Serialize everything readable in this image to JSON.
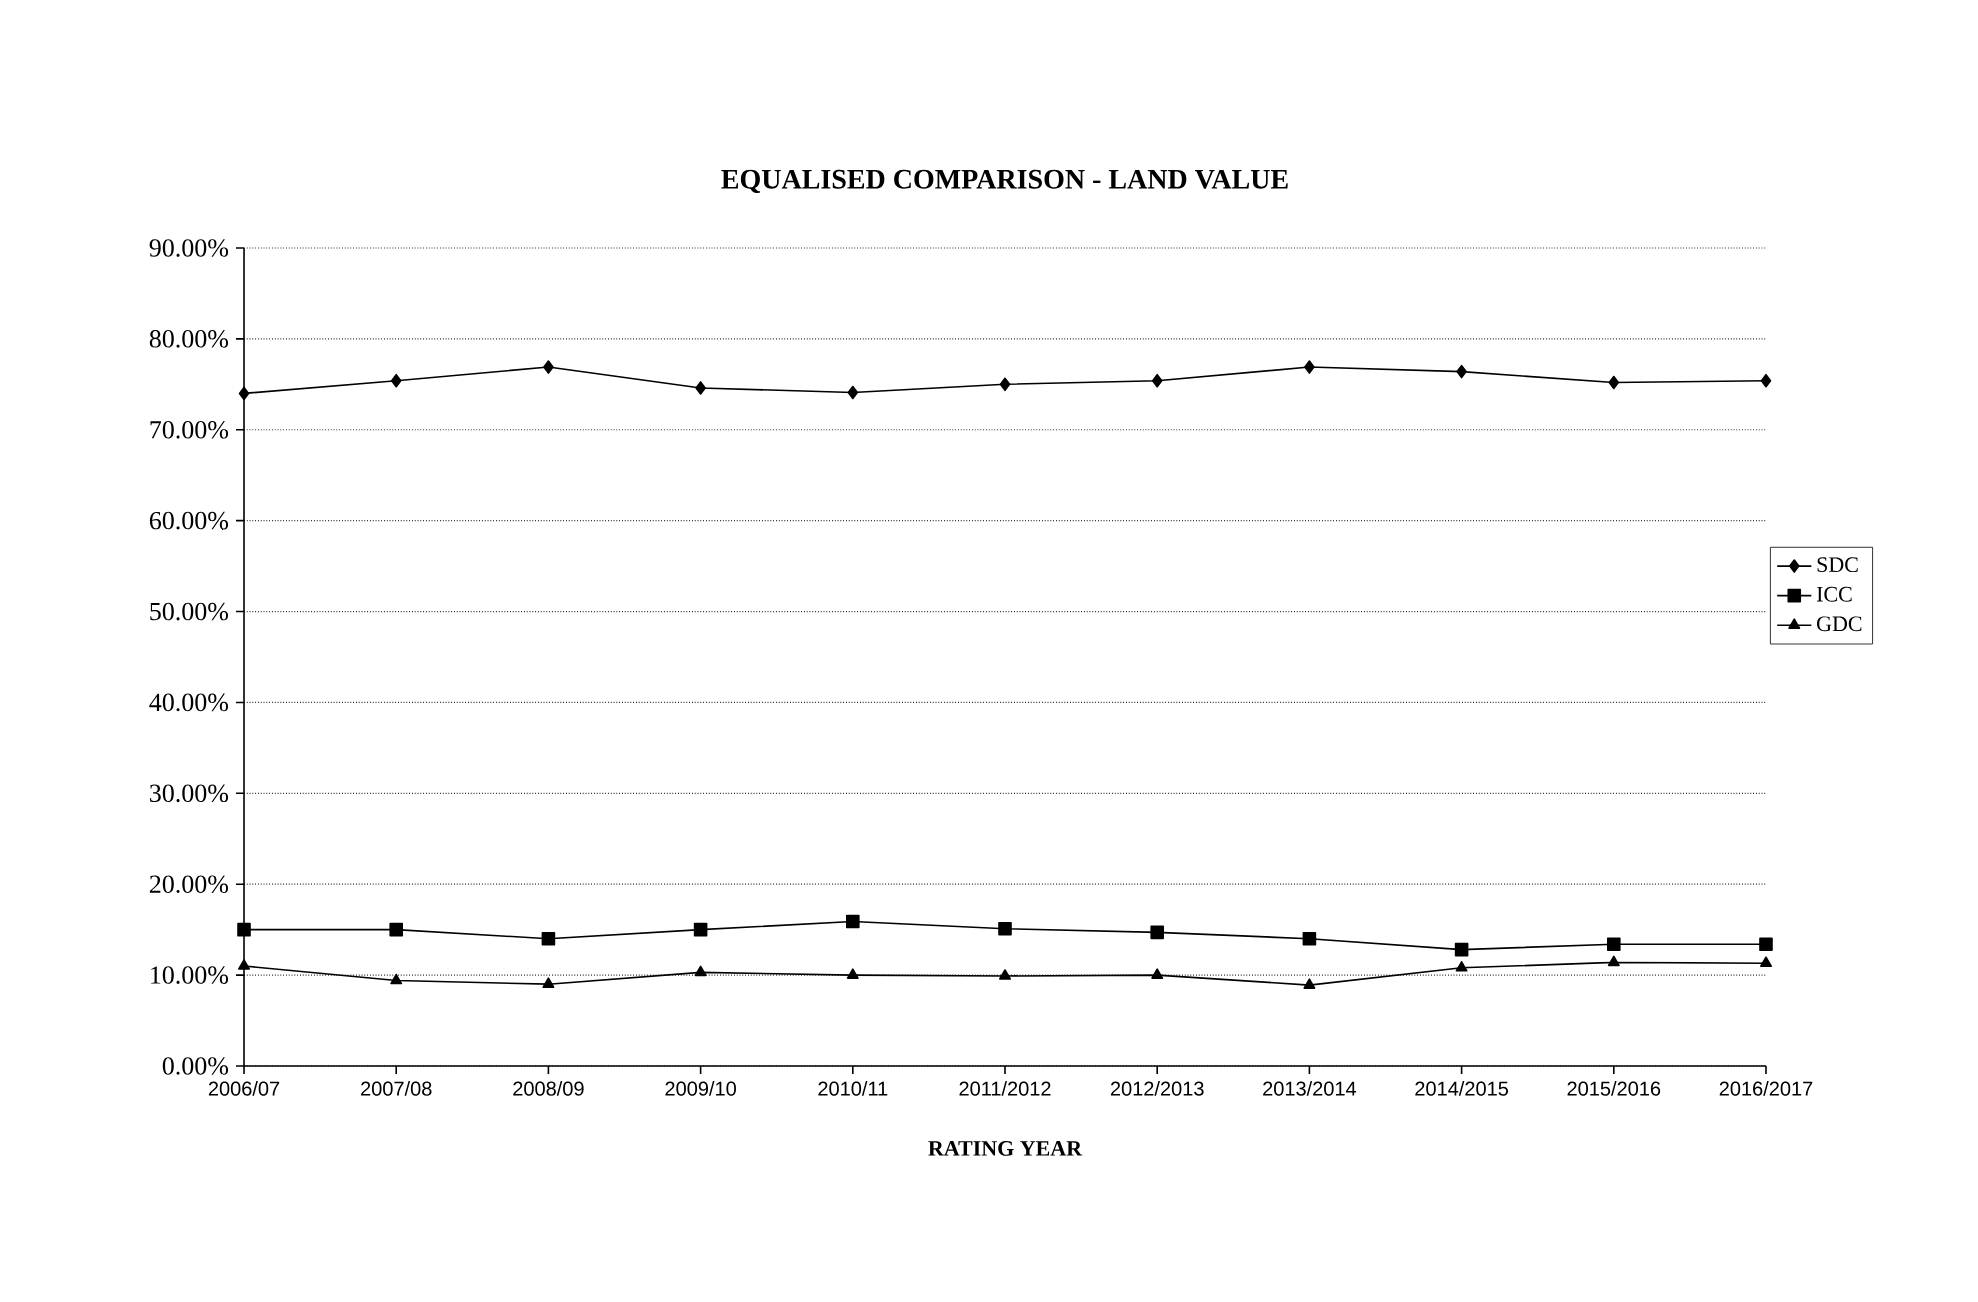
{
  "chart_data": {
    "type": "line",
    "title": "EQUALISED COMPARISON  -  LAND VALUE",
    "xlabel": "RATING YEAR",
    "categories": [
      "2006/07",
      "2007/08",
      "2008/09",
      "2009/10",
      "2010/11",
      "2011/2012",
      "2012/2013",
      "2013/2014",
      "2014/2015",
      "2015/2016",
      "2016/2017"
    ],
    "series": [
      {
        "name": "SDC",
        "color": "#000000",
        "marker": "diamond",
        "values": [
          74.0,
          75.4,
          76.9,
          74.6,
          74.1,
          75.0,
          75.4,
          76.9,
          76.4,
          75.2,
          75.4
        ]
      },
      {
        "name": "ICC",
        "color": "#000000",
        "marker": "square",
        "values": [
          15.0,
          15.0,
          14.0,
          15.0,
          15.9,
          15.1,
          14.7,
          14.0,
          12.8,
          13.4,
          13.4
        ]
      },
      {
        "name": "GDC",
        "color": "#000000",
        "marker": "triangle",
        "values": [
          11.0,
          9.4,
          9.0,
          10.3,
          10.0,
          9.9,
          10.0,
          8.9,
          10.8,
          11.4,
          11.3
        ]
      }
    ],
    "ylim": [
      0,
      90
    ],
    "yticks": [
      {
        "value": 0,
        "label": "0.00%"
      },
      {
        "value": 10,
        "label": "10.00%"
      },
      {
        "value": 20,
        "label": "20.00%"
      },
      {
        "value": 30,
        "label": "30.00%"
      },
      {
        "value": 40,
        "label": "40.00%"
      },
      {
        "value": 50,
        "label": "50.00%"
      },
      {
        "value": 60,
        "label": "60.00%"
      },
      {
        "value": 70,
        "label": "70.00%"
      },
      {
        "value": 80,
        "label": "80.00%"
      },
      {
        "value": 90,
        "label": "90.00%"
      }
    ],
    "grid": "y",
    "legend": "right",
    "line_style": "solid"
  }
}
